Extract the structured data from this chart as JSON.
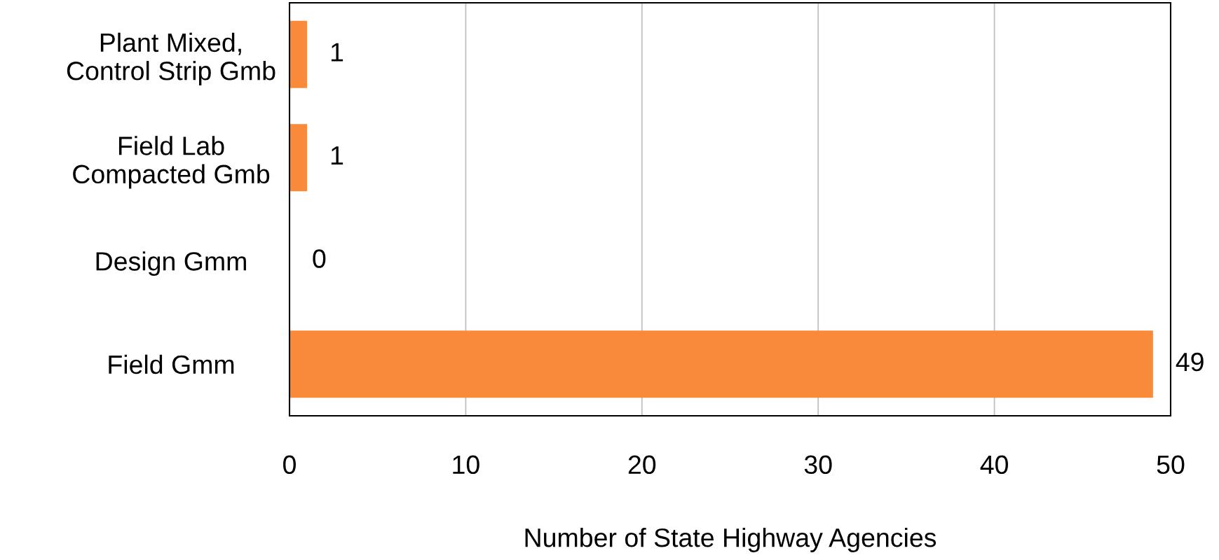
{
  "chart_data": {
    "type": "bar",
    "orientation": "horizontal",
    "xlabel": "Number of State Highway Agencies",
    "categories": [
      "Plant Mixed,\nControl Strip Gmb",
      "Field Lab\nCompacted Gmb",
      "Design Gmm",
      "Field Gmm"
    ],
    "values": [
      1,
      1,
      0,
      49
    ],
    "color": "#f98a3a",
    "xlim": [
      0,
      50
    ],
    "xticks": [
      0,
      10,
      20,
      30,
      40,
      50
    ],
    "grid": "x",
    "data_labels": true
  }
}
